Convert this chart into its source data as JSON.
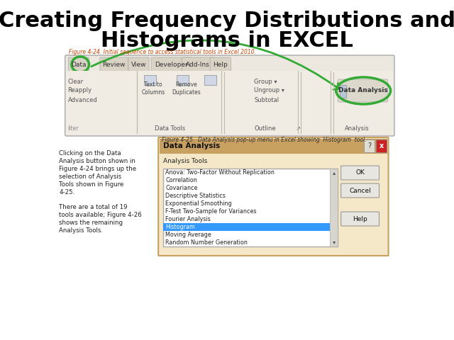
{
  "title_line1": "Creating Frequency Distributions and",
  "title_line2": "Histograms in EXCEL",
  "title_fontsize": 22,
  "title_color": "#000000",
  "bg_color": "#ffffff",
  "fig4_24_caption": "Figure 4-24. Initial sequence to access statistical tools in Excel 2010.",
  "fig4_25_caption": "Figure 4-25.  Data Analysis pop-up menu in Excel showing  Histogram  tool.",
  "excel_ribbon": {
    "tabs": [
      "Data",
      "Review",
      "View",
      "Developer",
      "Add-Ins",
      "Help"
    ],
    "highlighted_tab": "Data",
    "sections": [
      "Data Tools",
      "Outline",
      "Analysis"
    ],
    "filter_label": "ilter",
    "items_left": [
      "Clear",
      "Reapply",
      "Advanced"
    ],
    "items_center": [
      "Text to\nColumns",
      "Remove\nDuplicates"
    ],
    "items_right_outline": [
      "Group ▾",
      "Ungroup ▾",
      "Subtotal"
    ],
    "items_analysis": [
      "Data Analysis"
    ],
    "ribbon_bg": "#e8e0d0",
    "tab_bg": "#f0ece0",
    "highlight_circle_color": "#33aa33"
  },
  "sidebar_text": [
    "Clicking on the Data",
    "Analysis button shown in",
    "Figure 4-24 brings up the",
    "selection of Analysis",
    "Tools shown in Figure",
    "4-25.",
    "",
    "There are a total of 19",
    "tools available; Figure 4-26",
    "shows the remaining",
    "Analysis Tools."
  ],
  "sidebar_bold_words": [
    "Analysis",
    "Tools"
  ],
  "dialog": {
    "title": "Data Analysis",
    "title_bg": "#c8a060",
    "bg": "#f5e8c8",
    "border_color": "#c8a060",
    "label": "Analysis Tools",
    "items": [
      "Anova: Two-Factor Without Replication",
      "Correlation",
      "Covariance",
      "Descriptive Statistics",
      "Exponential Smoothing",
      "F-Test Two-Sample for Variances",
      "Fourier Analysis",
      "Histogram",
      "Moving Average",
      "Random Number Generation"
    ],
    "selected_item": "Histogram",
    "selected_bg": "#3399ff",
    "selected_text": "#ffffff",
    "buttons": [
      "OK",
      "Cancel",
      "Help"
    ],
    "button_bg": "#e8e8e8",
    "button_border": "#aaaaaa"
  }
}
